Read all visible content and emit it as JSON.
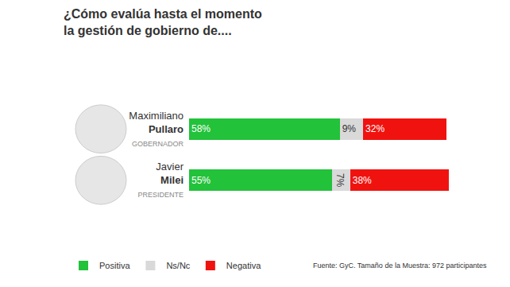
{
  "chart_data": {
    "type": "bar",
    "title": "¿Cómo evalúa hasta el momento\nla gestión de gobierno de....",
    "categories": [
      "Maximiliano Pullaro",
      "Javier Milei"
    ],
    "roles": [
      "GOBERNADOR",
      "PRESIDENTE"
    ],
    "orientation": "horizontal",
    "stacked": true,
    "data_labels": true,
    "tick_labels": "y",
    "legend": "bottom left",
    "xlim": [
      0,
      100
    ],
    "series": [
      {
        "name": "Positiva",
        "color": "#22c23a",
        "values": [
          58,
          55
        ],
        "value_labels": [
          "58%",
          "55%"
        ]
      },
      {
        "name": "Ns/Nc",
        "color": "#d9d9d9",
        "values": [
          9,
          7
        ],
        "value_labels": [
          "9%",
          "7%"
        ]
      },
      {
        "name": "Negativa",
        "color": "#f0120f",
        "values": [
          32,
          38
        ],
        "value_labels": [
          "32%",
          "38%"
        ]
      }
    ],
    "source": "Fuente: GyC. Tamaño de la Muestra: 972 participantes"
  }
}
